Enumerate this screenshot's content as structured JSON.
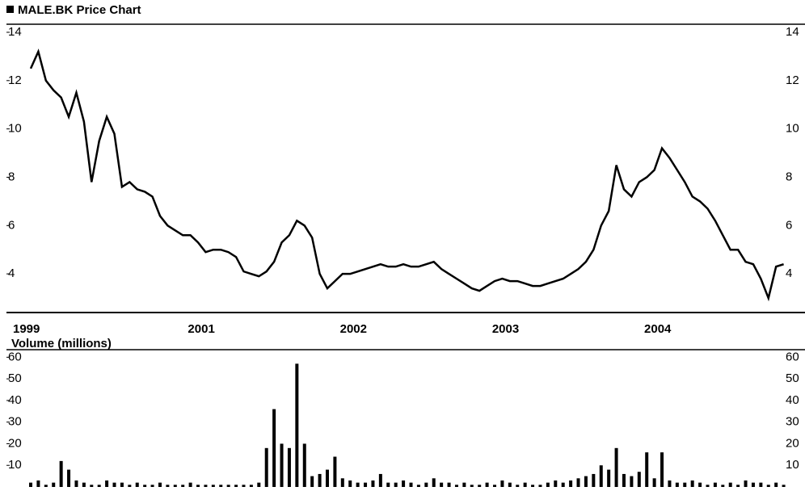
{
  "chart_data": [
    {
      "type": "line",
      "title": "MALE.BK Price Chart",
      "categories": [
        "1999",
        null,
        null,
        null,
        null,
        null,
        null,
        null,
        null,
        null,
        null,
        null,
        null,
        null,
        null,
        null,
        null,
        null,
        null,
        null,
        null,
        null,
        null,
        "2001",
        null,
        null,
        null,
        null,
        null,
        null,
        null,
        null,
        null,
        null,
        null,
        null,
        null,
        null,
        null,
        null,
        null,
        null,
        null,
        "2002",
        null,
        null,
        null,
        null,
        null,
        null,
        null,
        null,
        null,
        null,
        null,
        null,
        null,
        null,
        null,
        null,
        null,
        null,
        null,
        "2003",
        null,
        null,
        null,
        null,
        null,
        null,
        null,
        null,
        null,
        null,
        null,
        null,
        null,
        null,
        null,
        null,
        null,
        null,
        null,
        "2004",
        null,
        null,
        null,
        null,
        null,
        null,
        null,
        null,
        null,
        null,
        null,
        null,
        null,
        null,
        null,
        null
      ],
      "series": [
        {
          "name": null,
          "color": "#000000",
          "values": [
            12.5,
            13.2,
            12,
            11.6,
            11.3,
            10.5,
            11.5,
            10.3,
            7.8,
            9.5,
            10.5,
            9.8,
            7.6,
            7.8,
            7.5,
            7.4,
            7.2,
            6.4,
            6.0,
            5.8,
            5.6,
            5.6,
            5.3,
            4.9,
            5.0,
            5.0,
            4.9,
            4.7,
            4.1,
            4.0,
            3.9,
            4.1,
            4.5,
            5.3,
            5.6,
            6.2,
            6.0,
            5.5,
            4.0,
            3.4,
            3.7,
            4.0,
            4.0,
            4.1,
            4.2,
            4.3,
            4.4,
            4.3,
            4.3,
            4.4,
            4.3,
            4.3,
            4.4,
            4.5,
            4.2,
            4.0,
            3.8,
            3.6,
            3.4,
            3.3,
            3.5,
            3.7,
            3.8,
            3.7,
            3.7,
            3.6,
            3.5,
            3.5,
            3.6,
            3.7,
            3.8,
            4.0,
            4.2,
            4.5,
            5.0,
            6.0,
            6.6,
            8.5,
            7.5,
            7.2,
            7.8,
            8.0,
            8.3,
            9.2,
            8.8,
            8.3,
            7.8,
            7.2,
            7.0,
            6.7,
            6.2,
            5.6,
            5.0,
            5.0,
            4.5,
            4.4,
            3.8,
            3.0,
            4.3,
            4.4
          ]
        }
      ],
      "ylim": [
        2.4,
        14.2
      ],
      "yticks": [
        4,
        6,
        8,
        10,
        12,
        14
      ]
    },
    {
      "type": "bar",
      "title": "Volume (millions)",
      "color": "#000000",
      "values": [
        2,
        3,
        1,
        2,
        12,
        8,
        3,
        2,
        1,
        1,
        3,
        2,
        2,
        1,
        2,
        1,
        1,
        2,
        1,
        1,
        1,
        2,
        1,
        1,
        1,
        1,
        1,
        1,
        1,
        1,
        2,
        18,
        36,
        20,
        18,
        57,
        20,
        5,
        6,
        8,
        14,
        4,
        3,
        2,
        2,
        3,
        6,
        2,
        2,
        3,
        2,
        1,
        2,
        4,
        2,
        2,
        1,
        2,
        1,
        1,
        2,
        1,
        3,
        2,
        1,
        2,
        1,
        1,
        2,
        3,
        2,
        3,
        4,
        5,
        6,
        10,
        8,
        18,
        6,
        5,
        7,
        16,
        4,
        16,
        3,
        2,
        2,
        3,
        2,
        1,
        2,
        1,
        2,
        1,
        3,
        2,
        2,
        1,
        2,
        1
      ],
      "ylim": [
        0,
        62
      ],
      "yticks": [
        10,
        20,
        30,
        40,
        50,
        60
      ]
    }
  ]
}
